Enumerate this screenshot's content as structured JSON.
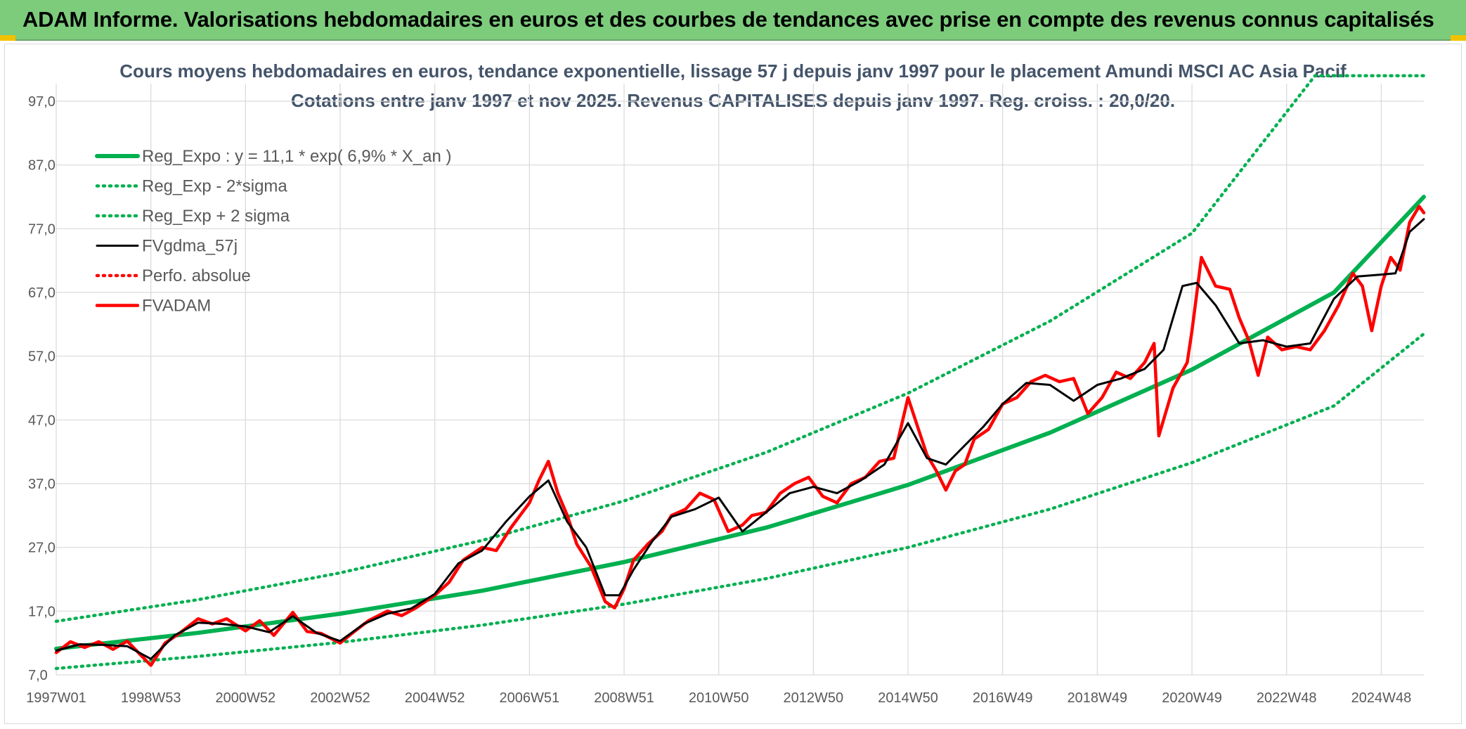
{
  "header": {
    "title": "ADAM Informe. Valorisations hebdomadaires en euros et des courbes de tendances avec prise en compte des revenus connus capitalisés"
  },
  "chart_data": {
    "type": "line",
    "title": "Cours moyens hebdomadaires en euros, tendance exponentielle, lissage 57 j depuis janv 1997 pour le placement Amundi MSCI AC Asia Pacif",
    "subtitle": "Cotations entre janv 1997 et nov 2025. Revenus CAPITALISES depuis janv 1997. Reg. croiss. : 20,0/20.",
    "ylim": [
      7,
      102
    ],
    "xlim": [
      1997.0,
      2025.9
    ],
    "yticks": [
      "7,0",
      "17,0",
      "27,0",
      "37,0",
      "47,0",
      "57,0",
      "67,0",
      "77,0",
      "87,0",
      "97,0"
    ],
    "ytick_values": [
      7,
      17,
      27,
      37,
      47,
      57,
      67,
      77,
      87,
      97
    ],
    "xticks": [
      "1997W01",
      "1998W53",
      "2000W52",
      "2002W52",
      "2004W52",
      "2006W51",
      "2008W51",
      "2010W50",
      "2012W50",
      "2014W50",
      "2016W49",
      "2018W49",
      "2020W49",
      "2022W48",
      "2024W48"
    ],
    "xtick_years": [
      1997.0,
      1999.0,
      2001.0,
      2003.0,
      2005.0,
      2007.0,
      2009.0,
      2011.0,
      2013.0,
      2015.0,
      2017.0,
      2019.0,
      2021.0,
      2023.0,
      2025.0
    ],
    "grid": true,
    "legend_position": "top-left",
    "series": [
      {
        "name": "Reg_Expo : y = 11,1 * exp( 6,9% *  X_an )",
        "color": "#00b050",
        "style": "solid",
        "x": [
          1997.0,
          2000.0,
          2003.0,
          2006.0,
          2009.0,
          2012.0,
          2015.0,
          2018.0,
          2021.0,
          2024.0,
          2025.9
        ],
        "y": [
          11.1,
          13.6,
          16.6,
          20.2,
          24.7,
          30.1,
          36.8,
          45.0,
          54.9,
          67.0,
          82.0
        ]
      },
      {
        "name": "Reg_Exp - 2*sigma",
        "color": "#00b050",
        "style": "dotted",
        "x": [
          1997.0,
          2000.0,
          2003.0,
          2006.0,
          2009.0,
          2012.0,
          2015.0,
          2018.0,
          2021.0,
          2024.0,
          2025.9
        ],
        "y": [
          8.0,
          9.9,
          12.1,
          14.8,
          18.1,
          22.1,
          27.0,
          33.0,
          40.3,
          49.2,
          60.5
        ]
      },
      {
        "name": "Reg_Exp + 2 sigma",
        "color": "#00b050",
        "style": "dotted",
        "x": [
          1997.0,
          2000.0,
          2003.0,
          2006.0,
          2009.0,
          2012.0,
          2015.0,
          2018.0,
          2021.0,
          2023.6,
          2025.9
        ],
        "y": [
          15.4,
          18.8,
          23.0,
          28.1,
          34.3,
          41.9,
          51.2,
          62.5,
          76.3,
          101.0,
          101.0
        ]
      },
      {
        "name": "FVgdma_57j",
        "color": "#000000",
        "style": "solid",
        "x": [
          1997.0,
          1997.5,
          1998.0,
          1998.5,
          1999.0,
          1999.5,
          2000.0,
          2000.5,
          2001.0,
          2001.5,
          2002.0,
          2002.5,
          2003.0,
          2003.5,
          2004.0,
          2004.5,
          2005.0,
          2005.5,
          2006.0,
          2006.5,
          2007.0,
          2007.4,
          2007.8,
          2008.2,
          2008.6,
          2008.9,
          2009.2,
          2009.6,
          2010.0,
          2010.5,
          2011.0,
          2011.5,
          2012.0,
          2012.5,
          2013.0,
          2013.5,
          2014.0,
          2014.5,
          2015.0,
          2015.4,
          2015.8,
          2016.2,
          2016.6,
          2017.0,
          2017.5,
          2018.0,
          2018.5,
          2019.0,
          2019.5,
          2020.0,
          2020.4,
          2020.8,
          2021.1,
          2021.5,
          2022.0,
          2022.5,
          2023.0,
          2023.5,
          2024.0,
          2024.5,
          2025.0,
          2025.3,
          2025.6,
          2025.9
        ],
        "y": [
          10.8,
          11.8,
          11.7,
          11.5,
          9.5,
          13.2,
          15.2,
          15.0,
          14.6,
          13.7,
          16.2,
          13.6,
          12.3,
          15.0,
          16.6,
          17.4,
          19.7,
          24.5,
          26.5,
          31.0,
          35.0,
          37.5,
          31.0,
          27.0,
          19.5,
          19.5,
          23.5,
          28.0,
          31.8,
          33.0,
          34.8,
          29.5,
          32.5,
          35.5,
          36.5,
          35.5,
          37.5,
          40.0,
          46.5,
          41.0,
          40.0,
          43.0,
          46.0,
          49.5,
          52.8,
          52.5,
          50.0,
          52.5,
          53.5,
          55.0,
          58.0,
          68.0,
          68.5,
          65.0,
          59.0,
          59.5,
          58.5,
          59.0,
          66.0,
          69.5,
          69.8,
          70.0,
          76.5,
          78.5
        ]
      },
      {
        "name": "Perfo. absolue",
        "color": "#ff0000",
        "style": "dotted",
        "x": [],
        "y": []
      },
      {
        "name": "FVADAM",
        "color": "#ff0000",
        "style": "solid",
        "x": [
          1997.0,
          1997.3,
          1997.6,
          1997.9,
          1998.2,
          1998.5,
          1998.8,
          1999.0,
          1999.3,
          1999.6,
          2000.0,
          2000.3,
          2000.6,
          2001.0,
          2001.3,
          2001.6,
          2002.0,
          2002.3,
          2002.6,
          2003.0,
          2003.3,
          2003.6,
          2004.0,
          2004.3,
          2004.6,
          2005.0,
          2005.3,
          2005.6,
          2006.0,
          2006.3,
          2006.6,
          2007.0,
          2007.2,
          2007.4,
          2007.6,
          2007.8,
          2008.0,
          2008.3,
          2008.6,
          2008.8,
          2009.0,
          2009.2,
          2009.5,
          2009.8,
          2010.0,
          2010.3,
          2010.6,
          2010.9,
          2011.2,
          2011.5,
          2011.7,
          2012.0,
          2012.3,
          2012.6,
          2012.9,
          2013.2,
          2013.5,
          2013.8,
          2014.1,
          2014.4,
          2014.7,
          2015.0,
          2015.2,
          2015.4,
          2015.6,
          2015.8,
          2016.0,
          2016.2,
          2016.4,
          2016.7,
          2017.0,
          2017.3,
          2017.6,
          2017.9,
          2018.2,
          2018.5,
          2018.8,
          2019.1,
          2019.4,
          2019.7,
          2020.0,
          2020.2,
          2020.3,
          2020.6,
          2020.9,
          2021.0,
          2021.2,
          2021.5,
          2021.8,
          2022.0,
          2022.2,
          2022.4,
          2022.6,
          2022.9,
          2023.2,
          2023.5,
          2023.8,
          2024.1,
          2024.4,
          2024.6,
          2024.8,
          2025.0,
          2025.2,
          2025.4,
          2025.6,
          2025.8,
          2025.9
        ],
        "y": [
          10.5,
          12.2,
          11.3,
          12.2,
          11.0,
          12.3,
          10.0,
          8.5,
          12.0,
          13.5,
          15.8,
          15.0,
          15.8,
          13.9,
          15.5,
          13.2,
          16.8,
          13.8,
          13.5,
          12.0,
          13.8,
          15.5,
          17.0,
          16.3,
          17.5,
          19.5,
          21.5,
          25.0,
          27.0,
          26.5,
          30.0,
          34.0,
          37.5,
          40.5,
          35.5,
          32.0,
          27.5,
          24.0,
          18.5,
          17.5,
          20.5,
          25.0,
          27.5,
          29.5,
          32.0,
          33.0,
          35.5,
          34.5,
          29.5,
          30.5,
          32.0,
          32.5,
          35.5,
          37.0,
          38.0,
          35.0,
          34.0,
          37.0,
          38.0,
          40.5,
          41.0,
          50.5,
          46.0,
          41.5,
          39.0,
          36.0,
          39.0,
          40.0,
          44.0,
          45.5,
          49.5,
          50.5,
          53.0,
          54.0,
          53.0,
          53.5,
          48.0,
          50.5,
          54.5,
          53.5,
          56.0,
          59.0,
          44.5,
          52.0,
          56.0,
          61.0,
          72.5,
          68.0,
          67.5,
          63.0,
          59.5,
          54.0,
          60.0,
          58.0,
          58.5,
          58.0,
          61.0,
          65.0,
          70.0,
          68.0,
          61.0,
          68.0,
          72.5,
          70.5,
          78.0,
          80.5,
          79.5
        ]
      }
    ]
  }
}
